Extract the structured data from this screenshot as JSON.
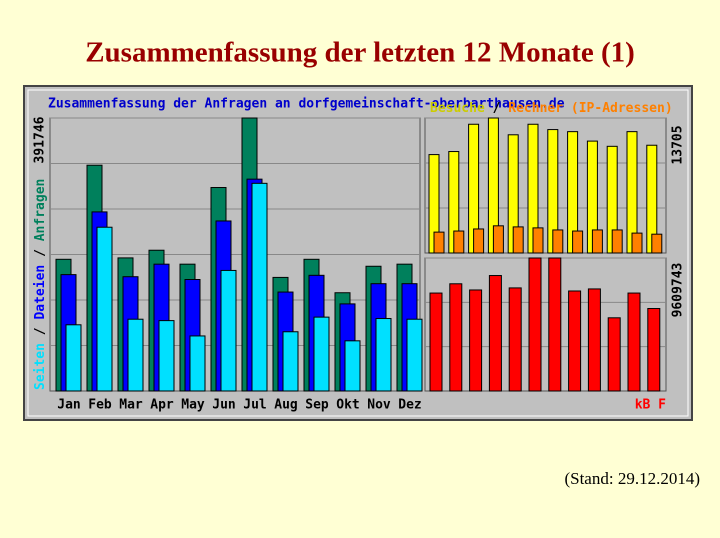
{
  "slide_title": "Zusammenfassung der letzten 12 Monate (1)",
  "footnote": "(Stand: 29.12.2014)",
  "chart_data": [
    {
      "type": "bar",
      "title": "Zusammenfassung der Anfragen an dorfgemeinschaft-oberbarthausen.de",
      "categories": [
        "Jan",
        "Feb",
        "Mar",
        "Apr",
        "May",
        "Jun",
        "Jul",
        "Aug",
        "Sep",
        "Okt",
        "Nov",
        "Dez"
      ],
      "series": [
        {
          "name": "Anfragen",
          "color": "#00805c",
          "values": [
            189000,
            324000,
            191000,
            202000,
            182000,
            292000,
            391746,
            163000,
            189000,
            141000,
            179000,
            182000
          ]
        },
        {
          "name": "Dateien",
          "color": "#0000ff",
          "values": [
            167000,
            257000,
            164000,
            182000,
            160000,
            244000,
            304000,
            142000,
            166000,
            125000,
            154000,
            154000
          ]
        },
        {
          "name": "Seiten",
          "color": "#00e0ff",
          "values": [
            95000,
            235000,
            103000,
            101000,
            79000,
            173000,
            298000,
            85000,
            106000,
            72000,
            104000,
            103000
          ]
        }
      ],
      "ylim": [
        0,
        391746
      ],
      "yticks": [
        391746
      ]
    },
    {
      "type": "bar",
      "series": [
        {
          "name": "Besuche",
          "color": "#ffff00",
          "values": [
            9990,
            10300,
            13070,
            13705,
            12000,
            13070,
            12530,
            12320,
            11360,
            10830,
            12320,
            10940
          ]
        },
        {
          "name": "Rechner (IP-Adressen)",
          "color": "#ff8000",
          "values": [
            2120,
            2230,
            2440,
            2760,
            2650,
            2550,
            2340,
            2230,
            2340,
            2340,
            2020,
            1910
          ]
        }
      ],
      "ylim": [
        0,
        13705
      ],
      "yticks": [
        13705
      ]
    },
    {
      "type": "bar",
      "series": [
        {
          "name": "kB F",
          "color": "#ff0000",
          "values": [
            7077000,
            7747000,
            7300000,
            8343000,
            7449000,
            9609743,
            9609743,
            7226000,
            7375000,
            5289000,
            7077000,
            5960000
          ]
        }
      ],
      "ylim": [
        0,
        9609743
      ],
      "yticks": [
        9609743
      ]
    }
  ]
}
